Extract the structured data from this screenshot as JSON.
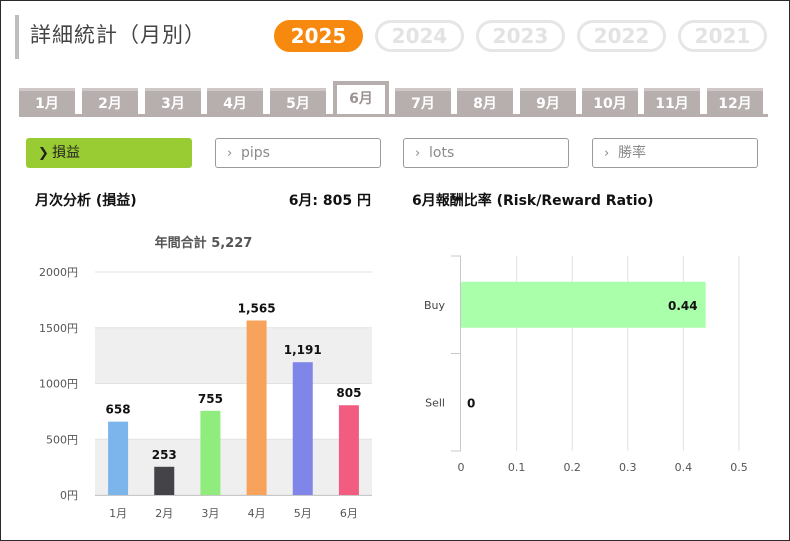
{
  "header": {
    "title": "詳細統計（月別）"
  },
  "years": [
    {
      "label": "2025",
      "active": true
    },
    {
      "label": "2024",
      "active": false
    },
    {
      "label": "2023",
      "active": false
    },
    {
      "label": "2022",
      "active": false
    },
    {
      "label": "2021",
      "active": false
    }
  ],
  "months": [
    {
      "label": "1月",
      "active": false
    },
    {
      "label": "2月",
      "active": false
    },
    {
      "label": "3月",
      "active": false
    },
    {
      "label": "4月",
      "active": false
    },
    {
      "label": "5月",
      "active": false
    },
    {
      "label": "6月",
      "active": true
    },
    {
      "label": "7月",
      "active": false
    },
    {
      "label": "8月",
      "active": false
    },
    {
      "label": "9月",
      "active": false
    },
    {
      "label": "10月",
      "active": false
    },
    {
      "label": "11月",
      "active": false
    },
    {
      "label": "12月",
      "active": false
    }
  ],
  "metrics": [
    {
      "label": "損益",
      "active": true
    },
    {
      "label": "pips",
      "active": false
    },
    {
      "label": "lots",
      "active": false
    },
    {
      "label": "勝率",
      "active": false
    }
  ],
  "monthly": {
    "title": "月次分析 (損益)",
    "value_label": "6月:  805 円"
  },
  "ratio": {
    "title": "6月報酬比率 (Risk/Reward Ratio)"
  },
  "colors": {
    "accent": "#f7890f",
    "tab_gray": "#b7aeae",
    "metric_green": "#99cc33"
  },
  "chart_data": [
    {
      "type": "bar",
      "title": "年間合計 5,227",
      "categories": [
        "1月",
        "2月",
        "3月",
        "4月",
        "5月",
        "6月"
      ],
      "values": [
        658,
        253,
        755,
        1565,
        1191,
        805
      ],
      "value_labels": [
        "658",
        "253",
        "755",
        "1,565",
        "1,191",
        "805"
      ],
      "colors": [
        "#7cb5ec",
        "#434348",
        "#90ed7d",
        "#f7a35c",
        "#8085e9",
        "#f15c80"
      ],
      "yticks": [
        "0円",
        "500円",
        "1000円",
        "1500円",
        "2000円"
      ],
      "ylim": [
        0,
        2000
      ],
      "grid": true
    },
    {
      "type": "bar",
      "orientation": "horizontal",
      "categories": [
        "Buy",
        "Sell"
      ],
      "values": [
        0.44,
        0
      ],
      "value_labels": [
        "0.44",
        "0"
      ],
      "bar_color": "#aaffaa",
      "xticks": [
        "0",
        "0.1",
        "0.2",
        "0.3",
        "0.4",
        "0.5"
      ],
      "xlim": [
        0,
        0.5
      ],
      "grid": true
    }
  ]
}
